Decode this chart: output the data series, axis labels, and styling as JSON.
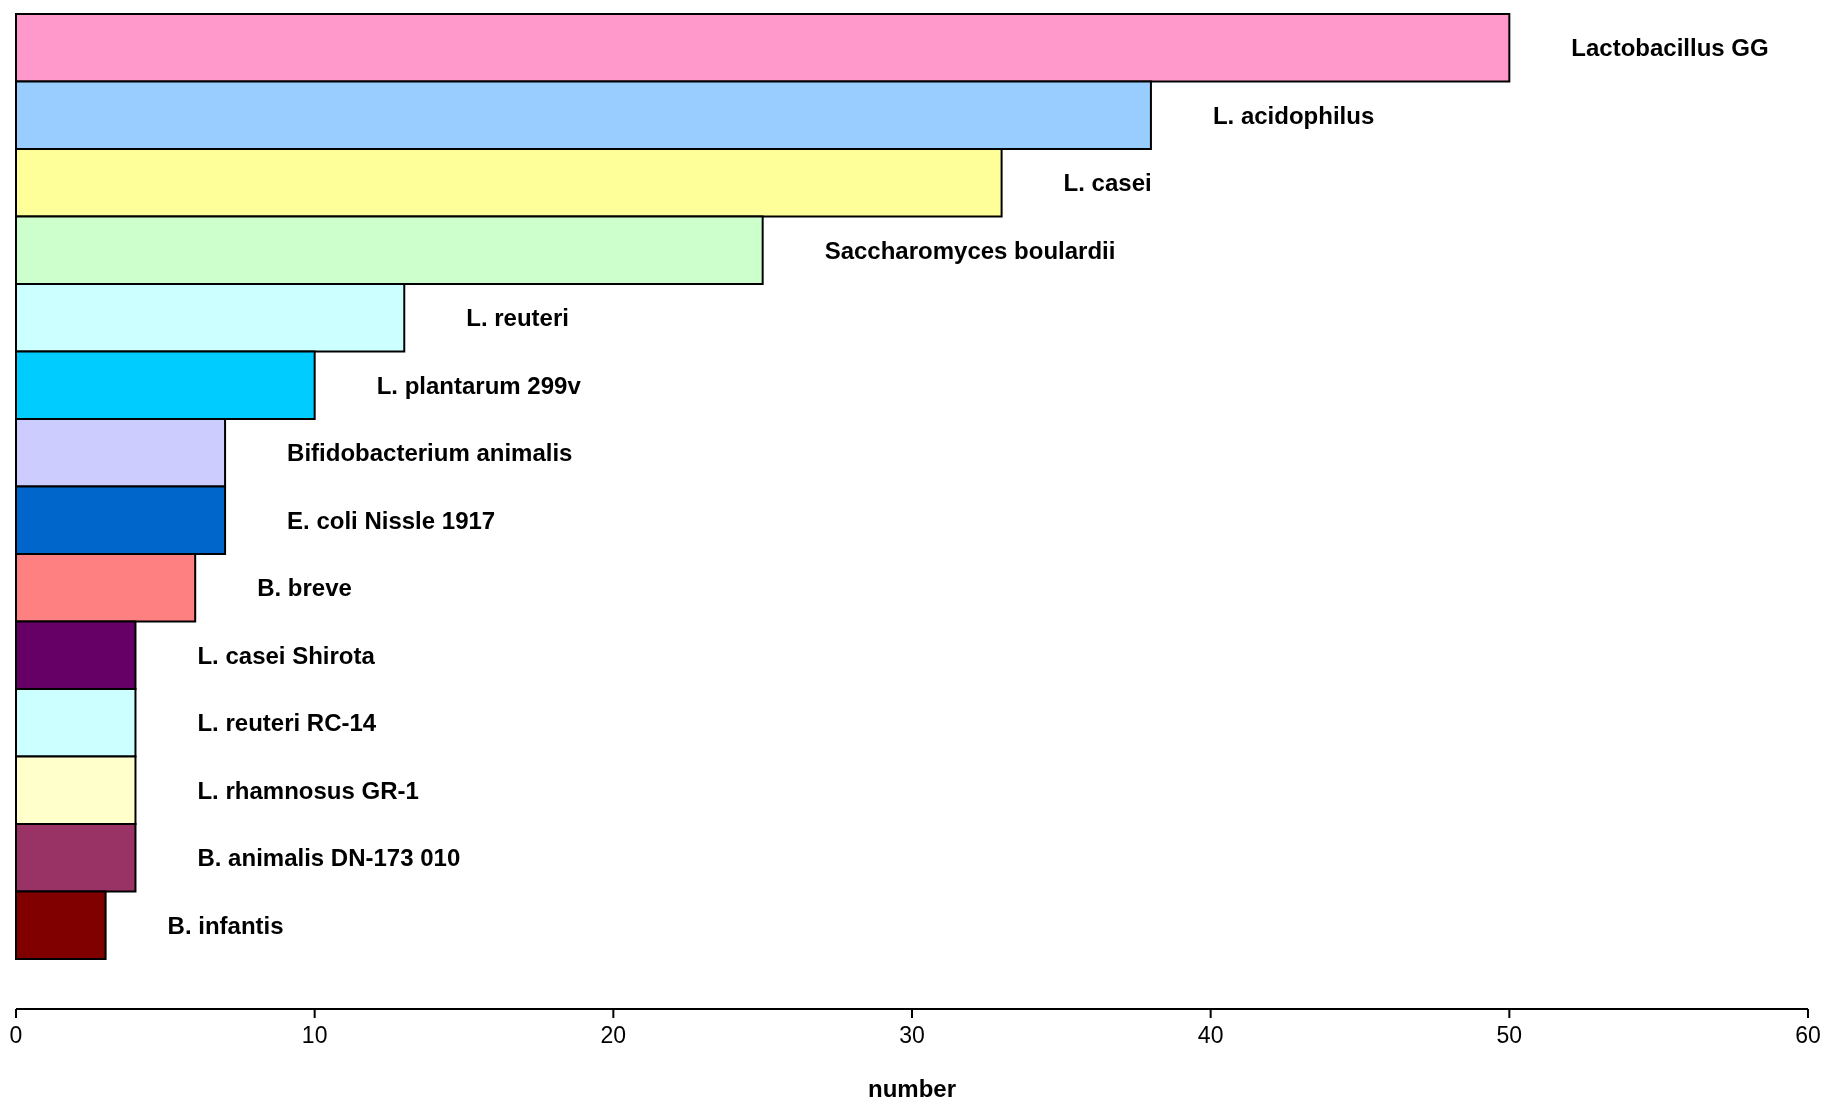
{
  "chart_data": {
    "type": "bar",
    "orientation": "horizontal",
    "xlabel": "number",
    "categories": [
      "Lactobacillus GG",
      "L. acidophilus",
      "L. casei",
      "Saccharomyces boulardii",
      "L. reuteri",
      "L. plantarum 299v",
      "Bifidobacterium animalis",
      "E. coli Nissle 1917",
      "B. breve",
      "L. casei Shirota",
      "L. reuteri RC-14",
      "L. rhamnosus GR-1",
      "B. animalis DN-173 010",
      "B. infantis"
    ],
    "values": [
      50,
      38,
      33,
      25,
      13,
      10,
      7,
      7,
      6,
      4,
      4,
      4,
      4,
      3
    ],
    "colors": [
      "#ff99cc",
      "#99ccff",
      "#ffff99",
      "#ccffcc",
      "#ccffff",
      "#00ccff",
      "#ccccff",
      "#0066cc",
      "#ff8080",
      "#660066",
      "#ccffff",
      "#ffffcc",
      "#993366",
      "#800000"
    ],
    "xlim": [
      0,
      60
    ],
    "xticks": [
      0,
      10,
      20,
      30,
      40,
      50,
      60
    ],
    "grid": false
  }
}
